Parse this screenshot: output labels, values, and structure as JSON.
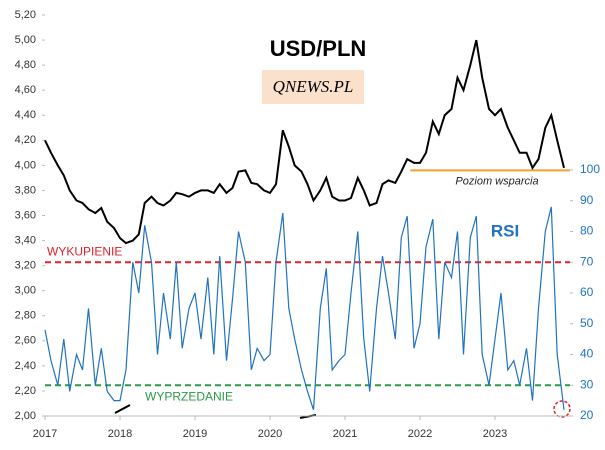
{
  "chart_data": {
    "type": "line",
    "title": "USD/PLN",
    "logo": "QNEWS.PL",
    "rsi_label": "RSI",
    "x": [
      2017.0,
      2017.08,
      2017.17,
      2017.25,
      2017.33,
      2017.42,
      2017.5,
      2017.58,
      2017.67,
      2017.75,
      2017.83,
      2017.92,
      2018.0,
      2018.08,
      2018.17,
      2018.25,
      2018.33,
      2018.42,
      2018.5,
      2018.58,
      2018.67,
      2018.75,
      2018.83,
      2018.92,
      2019.0,
      2019.08,
      2019.17,
      2019.25,
      2019.33,
      2019.42,
      2019.5,
      2019.58,
      2019.67,
      2019.75,
      2019.83,
      2019.92,
      2020.0,
      2020.08,
      2020.17,
      2020.25,
      2020.33,
      2020.42,
      2020.5,
      2020.58,
      2020.67,
      2020.75,
      2020.83,
      2020.92,
      2021.0,
      2021.08,
      2021.17,
      2021.25,
      2021.33,
      2021.42,
      2021.5,
      2021.58,
      2021.67,
      2021.75,
      2021.83,
      2021.92,
      2022.0,
      2022.08,
      2022.17,
      2022.25,
      2022.33,
      2022.42,
      2022.5,
      2022.58,
      2022.67,
      2022.75,
      2022.83,
      2022.92,
      2023.0,
      2023.08,
      2023.17,
      2023.25,
      2023.33,
      2023.42,
      2023.5,
      2023.58,
      2023.67,
      2023.75,
      2023.83,
      2023.92
    ],
    "series": [
      {
        "name": "USD/PLN",
        "color": "#000000",
        "axis": "y",
        "values": [
          4.2,
          4.1,
          4.0,
          3.92,
          3.8,
          3.72,
          3.7,
          3.65,
          3.62,
          3.66,
          3.55,
          3.5,
          3.42,
          3.38,
          3.4,
          3.45,
          3.7,
          3.75,
          3.7,
          3.68,
          3.72,
          3.78,
          3.77,
          3.75,
          3.78,
          3.8,
          3.8,
          3.78,
          3.85,
          3.78,
          3.82,
          3.95,
          3.96,
          3.86,
          3.85,
          3.8,
          3.78,
          3.85,
          4.28,
          4.15,
          4.0,
          3.95,
          3.85,
          3.72,
          3.8,
          3.9,
          3.75,
          3.72,
          3.72,
          3.74,
          3.9,
          3.8,
          3.68,
          3.7,
          3.85,
          3.88,
          3.86,
          3.95,
          4.05,
          4.02,
          4.02,
          4.1,
          4.35,
          4.25,
          4.4,
          4.45,
          4.7,
          4.6,
          4.8,
          5.0,
          4.7,
          4.45,
          4.4,
          4.45,
          4.3,
          4.2,
          4.1,
          4.1,
          3.98,
          4.05,
          4.3,
          4.4,
          4.2,
          3.98
        ]
      },
      {
        "name": "RSI",
        "color": "#1f73c0",
        "axis": "y2",
        "values": [
          48,
          38,
          30,
          45,
          28,
          40,
          35,
          55,
          30,
          42,
          28,
          25,
          25,
          35,
          70,
          60,
          82,
          70,
          40,
          60,
          45,
          70,
          42,
          55,
          60,
          45,
          65,
          40,
          72,
          38,
          58,
          80,
          70,
          35,
          42,
          38,
          40,
          70,
          86,
          55,
          45,
          35,
          28,
          22,
          55,
          68,
          35,
          38,
          40,
          60,
          80,
          45,
          28,
          55,
          72,
          60,
          45,
          78,
          85,
          42,
          50,
          75,
          84,
          45,
          70,
          65,
          80,
          40,
          78,
          85,
          40,
          30,
          45,
          60,
          35,
          38,
          30,
          42,
          25,
          55,
          80,
          88,
          40,
          22
        ]
      }
    ],
    "reference_lines": [
      {
        "label": "WYKUPIENIE",
        "value": 70,
        "axis": "y2",
        "color": "#e0202a"
      },
      {
        "label": "WYPRZEDANIE",
        "value": 30,
        "axis": "y2",
        "color": "#2a9a45"
      },
      {
        "label": "Poziom wsparcia",
        "value": 3.96,
        "axis": "y",
        "color": "#f0a030",
        "x_start": 2021.87
      }
    ],
    "xlim": [
      2017,
      2024
    ],
    "xticks": [
      2017,
      2018,
      2019,
      2020,
      2021,
      2022,
      2023
    ],
    "ylim": [
      2,
      5.2
    ],
    "yticks": [
      {
        "value": 2,
        "label": "2,00"
      },
      {
        "value": 2.2,
        "label": "2,20"
      },
      {
        "value": 2.4,
        "label": "2,40"
      },
      {
        "value": 2.6,
        "label": "2,60"
      },
      {
        "value": 2.8,
        "label": "2,80"
      },
      {
        "value": 3,
        "label": "3,00"
      },
      {
        "value": 3.2,
        "label": "3,20"
      },
      {
        "value": 3.4,
        "label": "3,40"
      },
      {
        "value": 3.6,
        "label": "3,60"
      },
      {
        "value": 3.8,
        "label": "3,80"
      },
      {
        "value": 4,
        "label": "4,00"
      },
      {
        "value": 4.2,
        "label": "4,20"
      },
      {
        "value": 4.4,
        "label": "4,40"
      },
      {
        "value": 4.6,
        "label": "4,60"
      },
      {
        "value": 4.8,
        "label": "4,80"
      },
      {
        "value": 5,
        "label": "5,00"
      },
      {
        "value": 5.2,
        "label": "5,20"
      }
    ],
    "y2lim": [
      20,
      150.4
    ],
    "y2ticks": [
      20,
      30,
      40,
      50,
      60,
      70,
      80,
      90,
      100
    ]
  }
}
